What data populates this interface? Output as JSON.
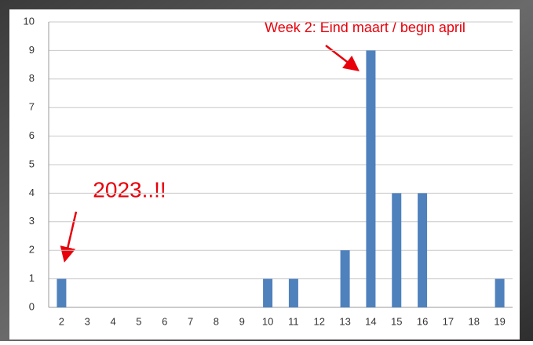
{
  "chart_data": {
    "type": "bar",
    "categories": [
      "2",
      "3",
      "4",
      "5",
      "6",
      "7",
      "8",
      "9",
      "10",
      "11",
      "12",
      "13",
      "14",
      "15",
      "16",
      "17",
      "18",
      "19"
    ],
    "values": [
      1,
      0,
      0,
      0,
      0,
      0,
      0,
      0,
      1,
      1,
      0,
      2,
      9,
      4,
      4,
      0,
      0,
      1
    ],
    "color": "#4f81bd",
    "ylim": [
      0,
      10
    ],
    "yticks": [
      0,
      1,
      2,
      3,
      4,
      5,
      6,
      7,
      8,
      9,
      10
    ],
    "grid": true,
    "annotations": [
      "Week 2: Eind maart / begin april",
      "2023..!!"
    ]
  }
}
